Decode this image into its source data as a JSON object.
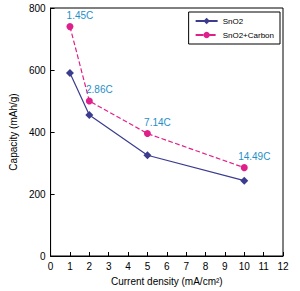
{
  "chart_data": {
    "type": "line",
    "x_label": "Current density (mA/cm²)",
    "y_label": "Capacity (mAh/g)",
    "xlim": [
      0,
      12
    ],
    "xticks": [
      0,
      1,
      2,
      3,
      4,
      5,
      6,
      7,
      8,
      9,
      10,
      11,
      12
    ],
    "ylim": [
      0,
      800
    ],
    "yticks": [
      0,
      200,
      400,
      600,
      800
    ],
    "grid": false,
    "legend": "top-right",
    "series": [
      {
        "name": "SnO2",
        "color": "#3b3b8f",
        "marker": "diamond",
        "line_style": "solid",
        "x": [
          1,
          2,
          5,
          10
        ],
        "values": [
          590,
          455,
          325,
          243
        ]
      },
      {
        "name": "SnO2+Carbon",
        "color": "#e0208a",
        "marker": "circle",
        "line_style": "dashed",
        "x": [
          1,
          2,
          5,
          10
        ],
        "values": [
          740,
          500,
          395,
          285
        ]
      }
    ],
    "annotations": [
      {
        "series": "SnO2+Carbon",
        "x": 1,
        "text": "1.45C"
      },
      {
        "series": "SnO2+Carbon",
        "x": 2,
        "text": "2.86C"
      },
      {
        "series": "SnO2+Carbon",
        "x": 5,
        "text": "7.14C"
      },
      {
        "series": "SnO2+Carbon",
        "x": 10,
        "text": "14.49C"
      }
    ]
  }
}
